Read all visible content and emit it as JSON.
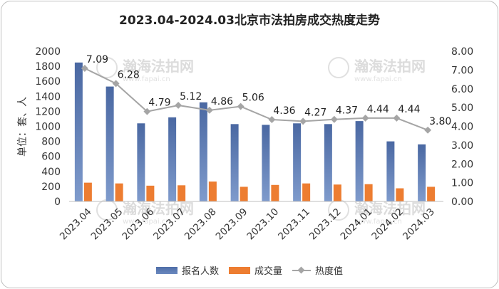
{
  "chart_data": {
    "type": "bar",
    "title": "2023.04-2024.03北京市法拍房成交热度走势",
    "ylabel": "单位：套、人",
    "categories": [
      "2023.04",
      "2023.05",
      "2023.06",
      "2023.07",
      "2023.08",
      "2023.09",
      "2023.10",
      "2023.11",
      "2023.12",
      "2024.01",
      "2024.02",
      "2024.03"
    ],
    "series": [
      {
        "name": "报名人数",
        "type": "bar",
        "axis": "left",
        "color": "#4f6ea8",
        "values": [
          1850,
          1530,
          1040,
          1120,
          1320,
          1030,
          1020,
          1040,
          1030,
          1070,
          800,
          760
        ]
      },
      {
        "name": "成交量",
        "type": "bar",
        "axis": "left",
        "color": "#ed7d31",
        "values": [
          250,
          240,
          210,
          215,
          265,
          195,
          220,
          240,
          225,
          230,
          175,
          195
        ]
      },
      {
        "name": "热度值",
        "type": "line",
        "axis": "right",
        "color": "#a5a5a5",
        "values": [
          7.09,
          6.28,
          4.79,
          5.12,
          4.86,
          5.06,
          4.36,
          4.27,
          4.37,
          4.44,
          4.44,
          3.8
        ],
        "labels": [
          "7.09",
          "6.28",
          "4.79",
          "5.12",
          "4.86",
          "5.06",
          "4.36",
          "4.27",
          "4.37",
          "4.44",
          "4.44",
          "3.80"
        ]
      }
    ],
    "y_left": {
      "min": 0,
      "max": 2000,
      "ticks": [
        "0",
        "200",
        "400",
        "600",
        "800",
        "1000",
        "1200",
        "1400",
        "1600",
        "1800",
        "2000"
      ]
    },
    "y_right": {
      "min": 0,
      "max": 8,
      "ticks": [
        "0.00",
        "1.00",
        "2.00",
        "3.00",
        "4.00",
        "5.00",
        "6.00",
        "7.00",
        "8.00"
      ]
    },
    "grid": false,
    "legend_position": "bottom"
  },
  "watermark": {
    "text": "瀚海法拍网",
    "url": "www.fapai.cn"
  }
}
